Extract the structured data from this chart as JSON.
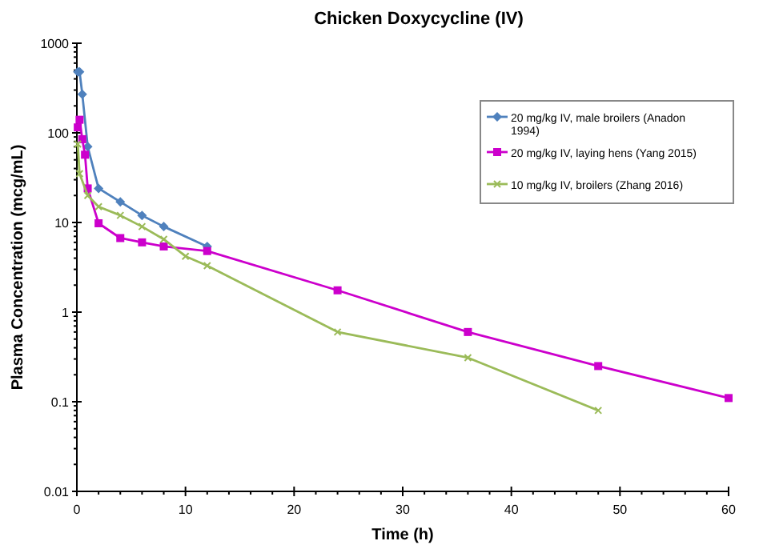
{
  "chart_data": {
    "type": "line",
    "title": "Chicken Doxycycline (IV)",
    "xlabel": "Time (h)",
    "ylabel": "Plasma Concentration (mcg/mL)",
    "log": "y",
    "xlim": [
      0,
      60
    ],
    "xticks": [
      0,
      10,
      20,
      30,
      40,
      50,
      60
    ],
    "ylim": [
      0.01,
      1000
    ],
    "yticks": [
      0.01,
      0.1,
      1,
      10,
      100,
      1000
    ],
    "grid": false,
    "legend": "top right",
    "series": [
      {
        "name": "20 mg/kg IV, male broilers (Anadon 1994)",
        "color": "#4f81bd",
        "marker": "diamond",
        "x": [
          0.083,
          0.25,
          0.5,
          1,
          2,
          4,
          6,
          8,
          12
        ],
        "values": [
          480,
          480,
          270,
          70,
          24,
          17,
          12,
          9,
          5.4
        ]
      },
      {
        "name": "20 mg/kg IV, laying hens (Yang 2015)",
        "color": "#cc00cc",
        "marker": "square",
        "x": [
          0.083,
          0.25,
          0.5,
          0.75,
          1,
          2,
          4,
          6,
          8,
          12,
          24,
          36,
          48,
          60
        ],
        "values": [
          115,
          140,
          85,
          57,
          24,
          9.8,
          6.7,
          6,
          5.4,
          4.8,
          1.75,
          0.6,
          0.25,
          0.11
        ]
      },
      {
        "name": "10 mg/kg IV, broilers (Zhang 2016)",
        "color": "#9bbb59",
        "marker": "cross",
        "x": [
          0.083,
          0.25,
          1,
          2,
          4,
          6,
          8,
          10,
          12,
          24,
          36,
          48
        ],
        "values": [
          75,
          35,
          20,
          15,
          12,
          9,
          6.5,
          4.2,
          3.3,
          0.6,
          0.31,
          0.08
        ]
      }
    ]
  }
}
